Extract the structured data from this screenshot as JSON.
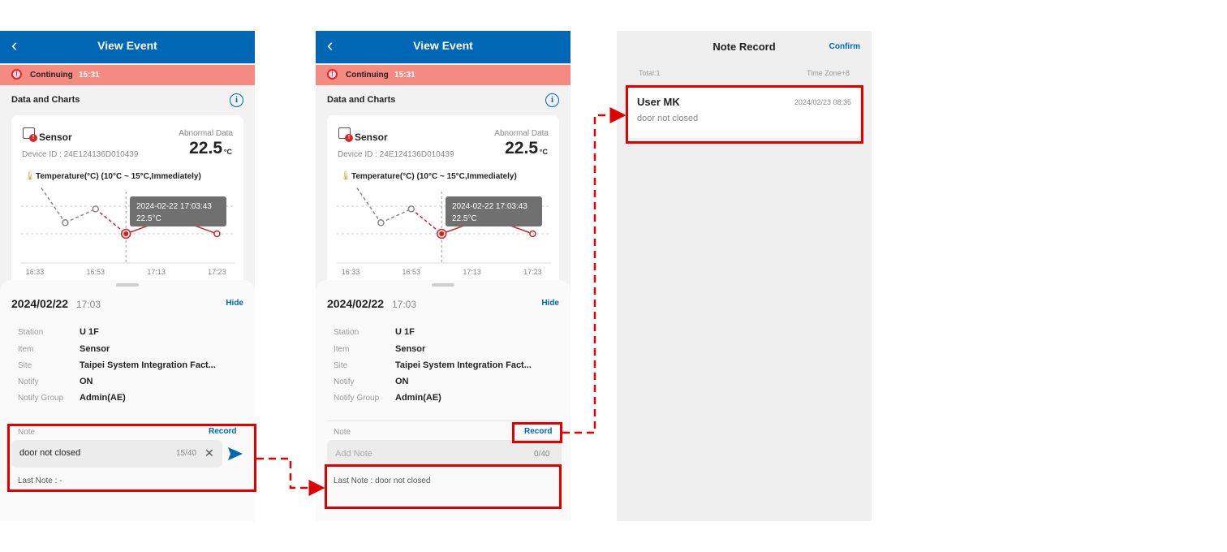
{
  "screens": [
    {
      "header": {
        "back_icon": "‹",
        "title": "View Event"
      },
      "alert": {
        "status": "Continuing",
        "time": "15:31"
      },
      "section_title": "Data and Charts",
      "card": {
        "sensor_name": "Sensor",
        "device_id": "Device ID : 24E124136D010439",
        "abnormal_label": "Abnormal Data",
        "abnormal_value": "22.5",
        "abnormal_unit": "°C",
        "temp_label": "Temperature(°C) (10°C ~ 15°C,Immediately)"
      },
      "sheet": {
        "date": "2024/02/22",
        "time": "17:03",
        "hide": "Hide",
        "fields": [
          {
            "label": "Station",
            "value": "U 1F"
          },
          {
            "label": "Item",
            "value": "Sensor"
          },
          {
            "label": "Site",
            "value": "Taipei System Integration Fact..."
          },
          {
            "label": "Notify",
            "value": "ON"
          },
          {
            "label": "Notify Group",
            "value": "Admin(AE)"
          }
        ],
        "note_label": "Note",
        "record": "Record",
        "note_value": "door not closed",
        "note_count": "15/40",
        "last_note": "Last Note : -"
      }
    },
    {
      "header": {
        "back_icon": "‹",
        "title": "View Event"
      },
      "alert": {
        "status": "Continuing",
        "time": "15:31"
      },
      "section_title": "Data and Charts",
      "card": {
        "sensor_name": "Sensor",
        "device_id": "Device ID : 24E124136D010439",
        "abnormal_label": "Abnormal Data",
        "abnormal_value": "22.5",
        "abnormal_unit": "°C",
        "temp_label": "Temperature(°C) (10°C ~ 15°C,Immediately)"
      },
      "sheet": {
        "date": "2024/02/22",
        "time": "17:03",
        "hide": "Hide",
        "fields": [
          {
            "label": "Station",
            "value": "U 1F"
          },
          {
            "label": "Item",
            "value": "Sensor"
          },
          {
            "label": "Site",
            "value": "Taipei System Integration Fact..."
          },
          {
            "label": "Notify",
            "value": "ON"
          },
          {
            "label": "Notify Group",
            "value": "Admin(AE)"
          }
        ],
        "note_label": "Note",
        "record": "Record",
        "note_placeholder": "Add Note",
        "note_count": "0/40",
        "last_note": "Last Note : door not closed"
      }
    }
  ],
  "chart_data": {
    "type": "line",
    "title": "",
    "xlabel": "",
    "ylabel": "",
    "x_ticks": [
      "16:33",
      "16:53",
      "17:13",
      "17:23"
    ],
    "series": [
      {
        "values": [
          24.5,
          22.9,
          23.4,
          22.5,
          22.9,
          22.9,
          22.5
        ],
        "colors": [
          "#888888",
          "#888888",
          "#888888",
          "#c62828",
          "#c62828",
          "#c62828",
          "#c62828"
        ]
      }
    ],
    "selected_index": 3,
    "tooltip": {
      "time": "2024-02-22 17:03:43",
      "value": "22.5°C"
    },
    "grid": true
  },
  "note_record": {
    "title": "Note Record",
    "confirm": "Confirm",
    "total": "Total:1",
    "timezone": "Time Zone+8",
    "entries": [
      {
        "user": "User MK",
        "datetime": "2024/02/23 08:35",
        "note": "door not closed"
      }
    ]
  },
  "colors": {
    "header": "#0067b5",
    "alert_bg": "#f58a80",
    "accent": "#0067b5",
    "highlight": "#e00000",
    "abnormal_line": "#c62828",
    "normal_line": "#888888"
  }
}
